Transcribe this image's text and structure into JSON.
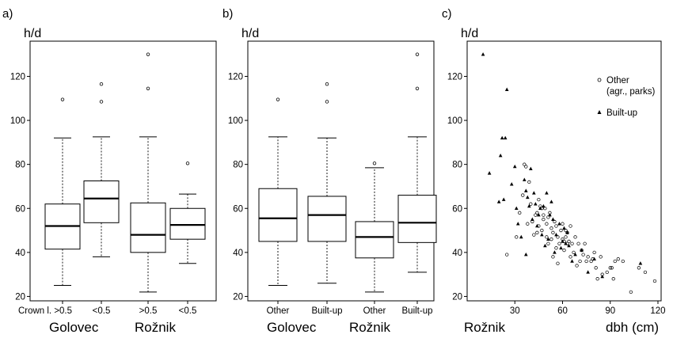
{
  "chart_data": [
    {
      "panel": "a)",
      "type": "box",
      "ylabel": "h/d",
      "ylim": [
        18,
        136
      ],
      "yticks": [
        20,
        40,
        60,
        80,
        100,
        120
      ],
      "categories": [
        "Crown l. >0.5",
        "<0.5",
        ">0.5",
        "<0.5"
      ],
      "groups": [
        "Golovec",
        "Rožnik"
      ],
      "boxes": [
        {
          "min": 25,
          "q1": 41.5,
          "median": 52,
          "q3": 62,
          "max": 92,
          "outliers": [
            109.5
          ]
        },
        {
          "min": 38,
          "q1": 53.5,
          "median": 64.5,
          "q3": 72.5,
          "max": 92.5,
          "outliers": [
            108.5,
            116.5
          ]
        },
        {
          "min": 22,
          "q1": 40,
          "median": 48,
          "q3": 62.5,
          "max": 92.5,
          "outliers": [
            114.5,
            130
          ]
        },
        {
          "min": 35,
          "q1": 46,
          "median": 52.5,
          "q3": 60,
          "max": 66.5,
          "outliers": [
            80.5
          ]
        }
      ]
    },
    {
      "panel": "b)",
      "type": "box",
      "ylabel": "h/d",
      "ylim": [
        18,
        136
      ],
      "yticks": [
        20,
        40,
        60,
        80,
        100,
        120
      ],
      "categories": [
        "Other",
        "Built-up",
        "Other",
        "Built-up"
      ],
      "groups": [
        "Golovec",
        "Rožnik"
      ],
      "boxes": [
        {
          "min": 25,
          "q1": 45,
          "median": 55.5,
          "q3": 69,
          "max": 92.5,
          "outliers": [
            109.5
          ]
        },
        {
          "min": 26,
          "q1": 45,
          "median": 57,
          "q3": 65.5,
          "max": 92,
          "outliers": [
            108.5,
            116.5
          ]
        },
        {
          "min": 22,
          "q1": 37.5,
          "median": 47,
          "q3": 54,
          "max": 78.5,
          "outliers": [
            80.5
          ]
        },
        {
          "min": 31,
          "q1": 44.5,
          "median": 53.5,
          "q3": 66,
          "max": 92.5,
          "outliers": [
            114.5,
            130
          ]
        }
      ]
    },
    {
      "panel": "c)",
      "type": "scatter",
      "ylabel": "h/d",
      "xlabel": "dbh (cm)",
      "group_label": "Rožnik",
      "xlim": [
        0,
        122
      ],
      "ylim": [
        18,
        136
      ],
      "xticks": [
        30,
        60,
        90,
        120
      ],
      "yticks": [
        20,
        40,
        60,
        80,
        100,
        120
      ],
      "legend_position": "top-right",
      "series": [
        {
          "name": "Other",
          "name_line2": "(agr., parks)",
          "marker": "circle",
          "points": [
            [
              25,
              39
            ],
            [
              31,
              47
            ],
            [
              33,
              58
            ],
            [
              35,
              66
            ],
            [
              36,
              80
            ],
            [
              37,
              79
            ],
            [
              38,
              53
            ],
            [
              39,
              72
            ],
            [
              40,
              62
            ],
            [
              41,
              54
            ],
            [
              42,
              48
            ],
            [
              43,
              57
            ],
            [
              44,
              58
            ],
            [
              45,
              64
            ],
            [
              45,
              52
            ],
            [
              46,
              61
            ],
            [
              47,
              50
            ],
            [
              48,
              55
            ],
            [
              48,
              57
            ],
            [
              49,
              60
            ],
            [
              50,
              53
            ],
            [
              50,
              47
            ],
            [
              51,
              56
            ],
            [
              51,
              44
            ],
            [
              52,
              58
            ],
            [
              53,
              51
            ],
            [
              53,
              46
            ],
            [
              54,
              49
            ],
            [
              55,
              54
            ],
            [
              56,
              52
            ],
            [
              56,
              42
            ],
            [
              57,
              47
            ],
            [
              58,
              44
            ],
            [
              59,
              50
            ],
            [
              60,
              46
            ],
            [
              60,
              53
            ],
            [
              61,
              45
            ],
            [
              61,
              41
            ],
            [
              62,
              47
            ],
            [
              62,
              50
            ],
            [
              63,
              44
            ],
            [
              63,
              49
            ],
            [
              64,
              45
            ],
            [
              65,
              38
            ],
            [
              66,
              44
            ],
            [
              67,
              40
            ],
            [
              68,
              47
            ],
            [
              69,
              34
            ],
            [
              70,
              44
            ],
            [
              71,
              36
            ],
            [
              72,
              41
            ],
            [
              73,
              39
            ],
            [
              74,
              44
            ],
            [
              75,
              36
            ],
            [
              76,
              38
            ],
            [
              78,
              36
            ],
            [
              79,
              37
            ],
            [
              80,
              40
            ],
            [
              81,
              33
            ],
            [
              82,
              28
            ],
            [
              84,
              38
            ],
            [
              85,
              30
            ],
            [
              88,
              31
            ],
            [
              90,
              33
            ],
            [
              91,
              33
            ],
            [
              92,
              28
            ],
            [
              93,
              36
            ],
            [
              95,
              37
            ],
            [
              98,
              36
            ],
            [
              103,
              22
            ],
            [
              108,
              33
            ],
            [
              112,
              31
            ],
            [
              118,
              27
            ],
            [
              57,
              35
            ],
            [
              47,
              60
            ],
            [
              44,
              49
            ],
            [
              54,
              38
            ],
            [
              65,
              52
            ]
          ]
        },
        {
          "name": "Built-up",
          "marker": "triangle",
          "points": [
            [
              10,
              130
            ],
            [
              14,
              76
            ],
            [
              20,
              63
            ],
            [
              21,
              84
            ],
            [
              22,
              92
            ],
            [
              23,
              64
            ],
            [
              24,
              92
            ],
            [
              25,
              114
            ],
            [
              28,
              71
            ],
            [
              30,
              79
            ],
            [
              31,
              60
            ],
            [
              32,
              53
            ],
            [
              34,
              47
            ],
            [
              36,
              73
            ],
            [
              37,
              68
            ],
            [
              38,
              65
            ],
            [
              39,
              61
            ],
            [
              40,
              78
            ],
            [
              41,
              55
            ],
            [
              42,
              67
            ],
            [
              43,
              62
            ],
            [
              44,
              52
            ],
            [
              45,
              57
            ],
            [
              46,
              60
            ],
            [
              47,
              48
            ],
            [
              48,
              61
            ],
            [
              49,
              43
            ],
            [
              50,
              67
            ],
            [
              51,
              46
            ],
            [
              52,
              57
            ],
            [
              53,
              63
            ],
            [
              54,
              55
            ],
            [
              55,
              40
            ],
            [
              56,
              48
            ],
            [
              58,
              53
            ],
            [
              59,
              42
            ],
            [
              60,
              45
            ],
            [
              61,
              51
            ],
            [
              62,
              44
            ],
            [
              63,
              49
            ],
            [
              64,
              43
            ],
            [
              66,
              36
            ],
            [
              68,
              39
            ],
            [
              72,
              41
            ],
            [
              76,
              31
            ],
            [
              80,
              37
            ],
            [
              85,
              29
            ],
            [
              109,
              35
            ],
            [
              37,
              39
            ]
          ]
        }
      ]
    }
  ]
}
